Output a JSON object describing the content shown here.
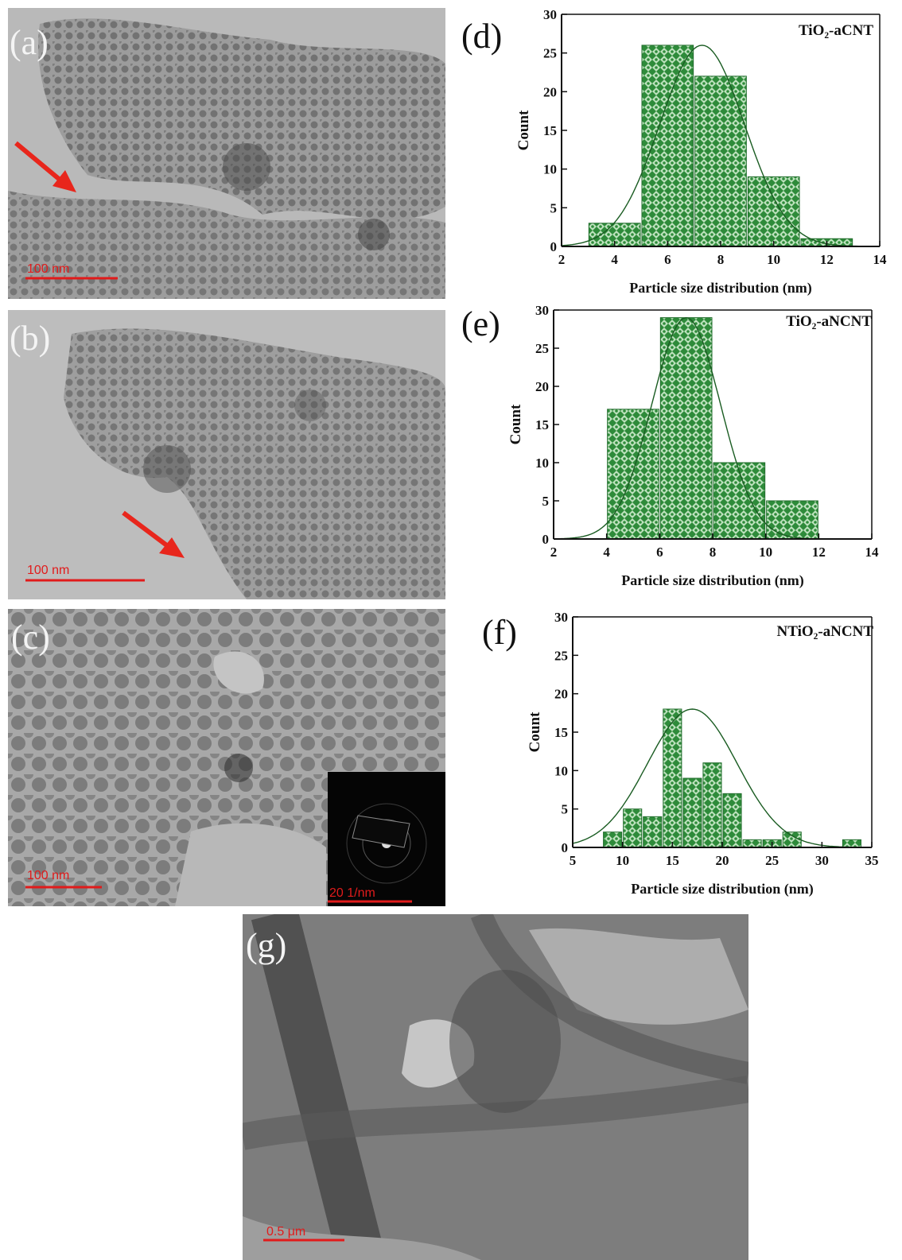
{
  "colors": {
    "bar_fill": "#2e8b3a",
    "bar_pattern": "#bfe3bf",
    "scale_bar": "#e11b1b",
    "arrow": "#e8261c"
  },
  "tem": {
    "a": {
      "label": "(a)",
      "scale": "100 nm"
    },
    "b": {
      "label": "(b)",
      "scale": "100 nm"
    },
    "c": {
      "label": "(c)",
      "scale": "100 nm",
      "inset_scale": "20 1/nm"
    },
    "g": {
      "label": "(g)",
      "scale": "0.5 μm"
    }
  },
  "chart_data": [
    {
      "type": "bar",
      "panel": "(d)",
      "series_label": "TiO₂-aCNT",
      "xlabel": "Particle size distribution (nm)",
      "ylabel": "Count",
      "xlim": [
        2,
        14
      ],
      "ylim": [
        0,
        30
      ],
      "xticks": [
        2,
        4,
        6,
        8,
        10,
        12,
        14
      ],
      "yticks": [
        0,
        5,
        10,
        15,
        20,
        25,
        30
      ],
      "bins": [
        [
          3,
          5
        ],
        [
          5,
          7
        ],
        [
          7,
          9
        ],
        [
          9,
          11
        ],
        [
          11,
          13
        ]
      ],
      "values": [
        3,
        26,
        22,
        9,
        1
      ],
      "fit": {
        "type": "gaussian",
        "amp": 26,
        "mean": 7.3,
        "sigma": 1.6
      }
    },
    {
      "type": "bar",
      "panel": "(e)",
      "series_label": "TiO₂-aNCNT",
      "xlabel": "Particle size distribution (nm)",
      "ylabel": "Count",
      "xlim": [
        2,
        14
      ],
      "ylim": [
        0,
        30
      ],
      "xticks": [
        2,
        4,
        6,
        8,
        10,
        12,
        14
      ],
      "yticks": [
        0,
        5,
        10,
        15,
        20,
        25,
        30
      ],
      "bins": [
        [
          4,
          6
        ],
        [
          6,
          8
        ],
        [
          8,
          10
        ],
        [
          10,
          12
        ]
      ],
      "values": [
        17,
        29,
        10,
        5
      ],
      "fit": {
        "type": "gaussian",
        "amp": 29,
        "mean": 7.0,
        "sigma": 1.3
      }
    },
    {
      "type": "bar",
      "panel": "(f)",
      "series_label": "NTiO₂-aNCNT",
      "xlabel": "Particle size distribution (nm)",
      "ylabel": "Count",
      "xlim": [
        5,
        35
      ],
      "ylim": [
        0,
        30
      ],
      "xticks": [
        5,
        10,
        15,
        20,
        25,
        30,
        35
      ],
      "yticks": [
        0,
        5,
        10,
        15,
        20,
        25,
        30
      ],
      "bins": [
        [
          8,
          10
        ],
        [
          10,
          12
        ],
        [
          12,
          14
        ],
        [
          14,
          16
        ],
        [
          16,
          18
        ],
        [
          18,
          20
        ],
        [
          20,
          22
        ],
        [
          22,
          24
        ],
        [
          24,
          26
        ],
        [
          26,
          28
        ],
        [
          28,
          30
        ],
        [
          30,
          32
        ],
        [
          32,
          34
        ]
      ],
      "values": [
        2,
        5,
        4,
        18,
        9,
        11,
        7,
        1,
        1,
        2,
        0,
        0,
        1
      ],
      "fit": {
        "type": "gaussian",
        "amp": 18,
        "mean": 17,
        "sigma": 4.5
      }
    }
  ]
}
